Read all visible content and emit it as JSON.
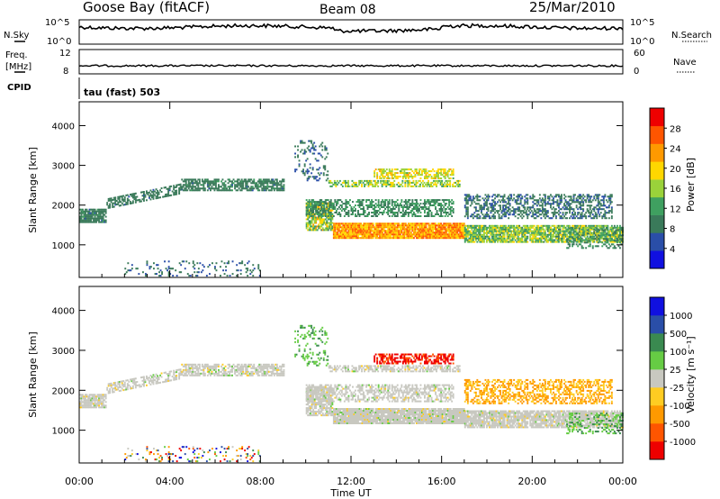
{
  "header": {
    "station": "Goose Bay (fitACF)",
    "beam": "Beam 08",
    "date": "25/Mar/2010"
  },
  "top_panels": {
    "nsky_label": "N.Sky",
    "nsky_ticks": [
      "10^5",
      "10^0"
    ],
    "nsearch_label": "N.Search",
    "nsearch_ticks": [
      "10^5",
      "10^0"
    ],
    "freq_label_1": "Freq.",
    "freq_label_2": "[MHz]",
    "freq_ticks": [
      "12",
      "8"
    ],
    "nave_label": "Nave",
    "nave_ticks": [
      "60",
      "0"
    ],
    "cpid_label": "CPID",
    "cpid_value": "tau (fast) 503"
  },
  "colors": {
    "power_scale": [
      "#1010e0",
      "#2a4ea8",
      "#3a7a5a",
      "#3fa060",
      "#9ad23a",
      "#ffd700",
      "#ff9900",
      "#ff5500",
      "#ee0000"
    ],
    "velocity_scale": [
      "#1010e0",
      "#2a4ea8",
      "#3a8a50",
      "#66cc44",
      "#c8c8c0",
      "#ffcc22",
      "#ff9900",
      "#ff5500",
      "#ee0000"
    ]
  },
  "chart_data": [
    {
      "type": "heatmap",
      "name": "power",
      "ylabel": "Slant Range [km]",
      "x_range_hours": [
        0,
        24
      ],
      "ylim": [
        180,
        4600
      ],
      "yticks": [
        1000,
        2000,
        3000,
        4000
      ],
      "colorbar_label": "Power [dB]",
      "colorbar_ticks": [
        "4",
        "8",
        "12",
        "16",
        "20",
        "24",
        "28"
      ],
      "colorbar_range": [
        0,
        32
      ]
    },
    {
      "type": "heatmap",
      "name": "velocity",
      "ylabel": "Slant Range [km]",
      "xlabel": "Time UT",
      "x_range_hours": [
        0,
        24
      ],
      "xticks": [
        "00:00",
        "04:00",
        "08:00",
        "12:00",
        "16:00",
        "20:00",
        "00:00"
      ],
      "ylim": [
        180,
        4600
      ],
      "yticks": [
        1000,
        2000,
        3000,
        4000
      ],
      "colorbar_label": "Velocity [m s⁻¹]",
      "colorbar_ticks": [
        "1000",
        "500",
        "100",
        "25",
        "-25",
        "-100",
        "-500",
        "-1000"
      ]
    }
  ]
}
